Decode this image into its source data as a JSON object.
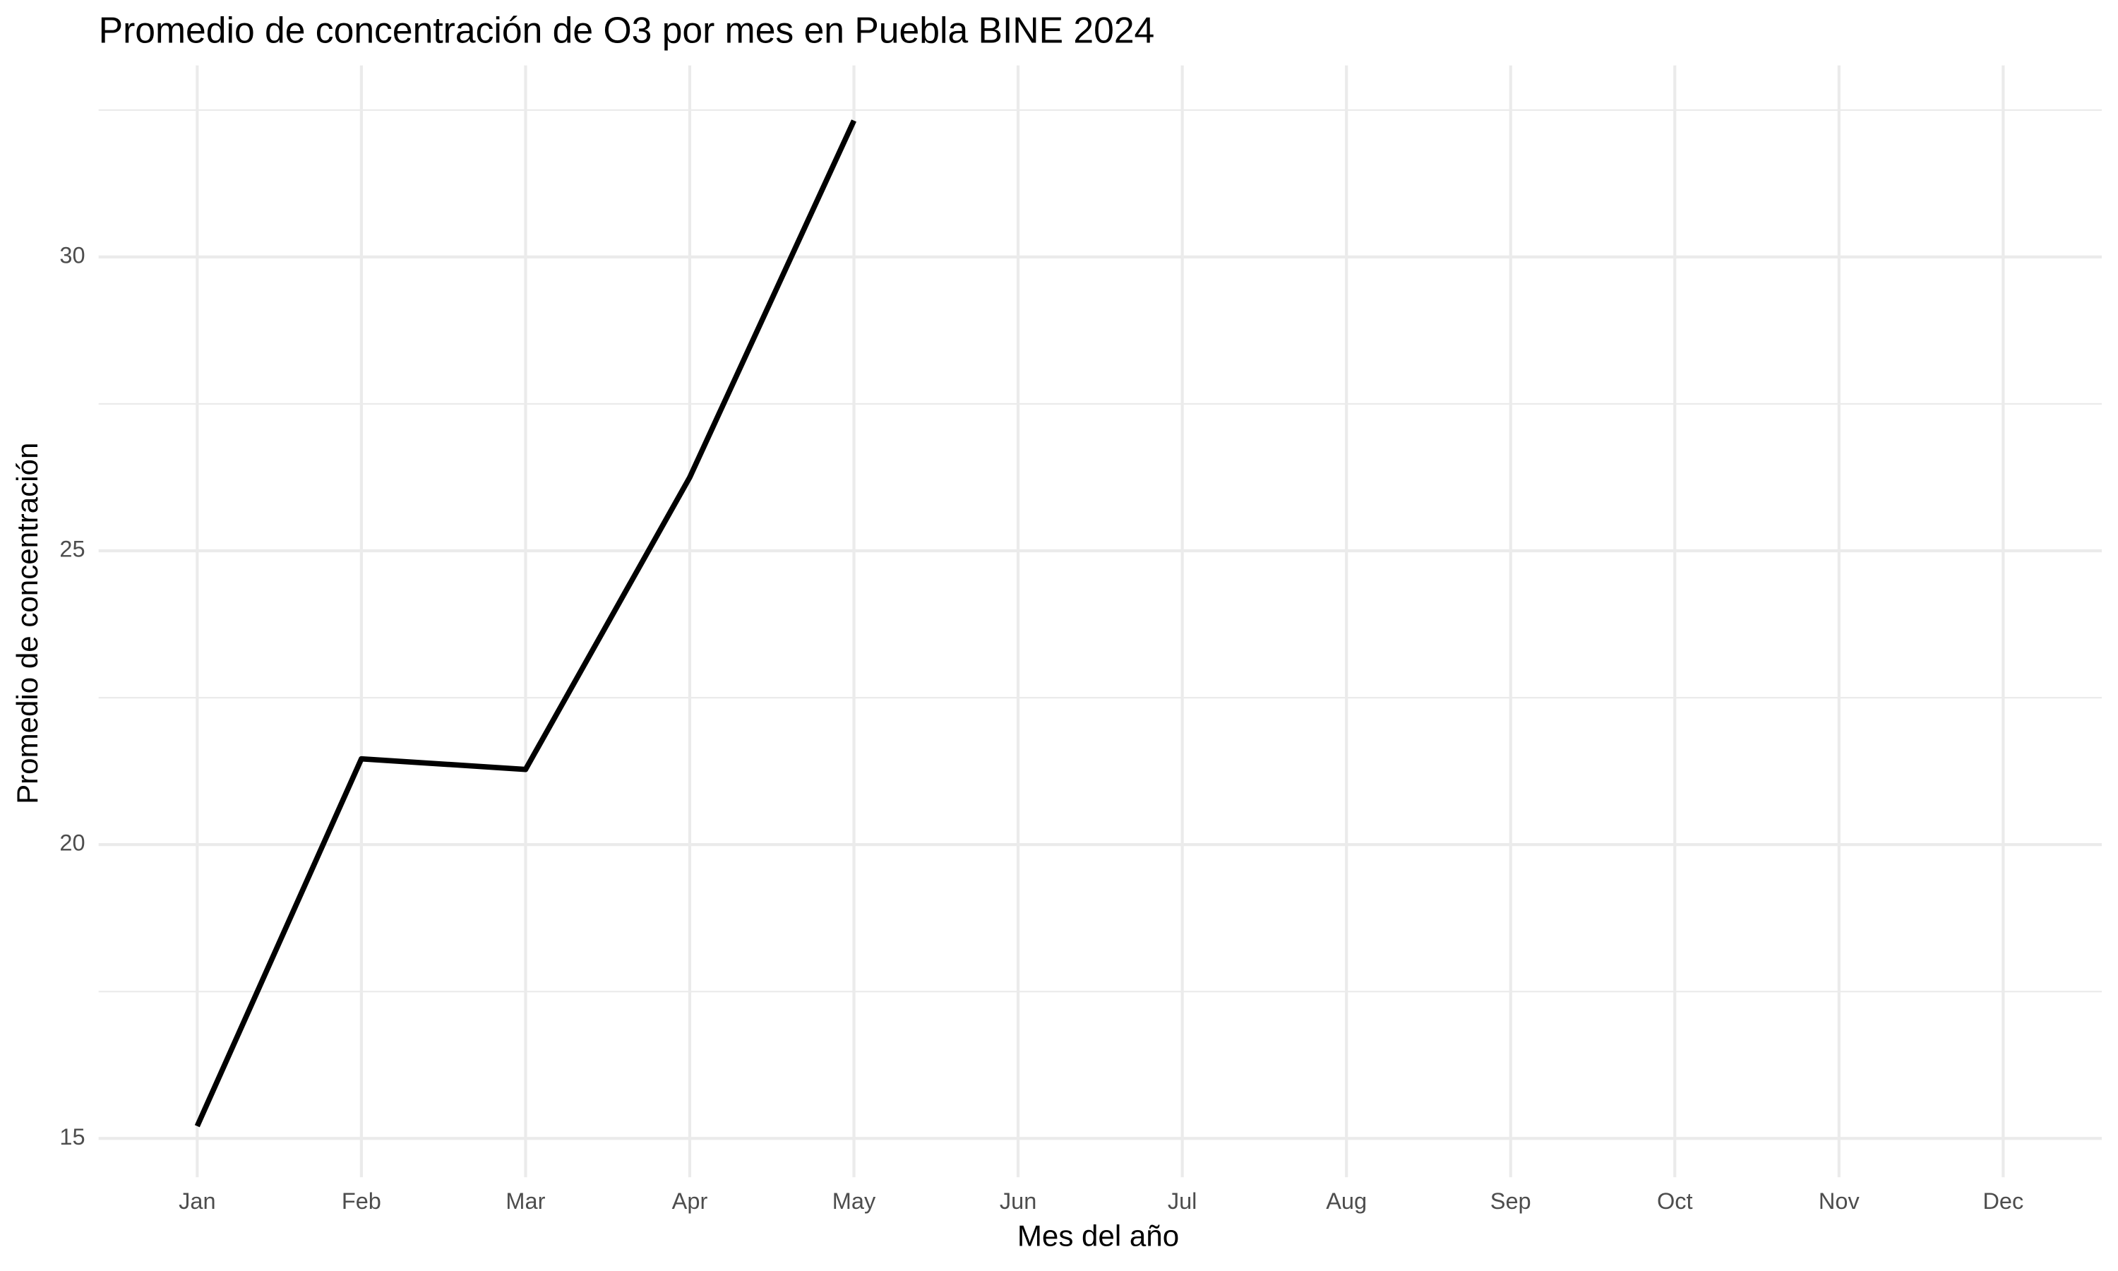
{
  "chart_data": {
    "type": "line",
    "title": "Promedio de concentración de O3 por mes en Puebla BINE 2024",
    "x_label": "Mes del año",
    "y_label": "Promedio de concentración",
    "categories": [
      "Jan",
      "Feb",
      "Mar",
      "Apr",
      "May",
      "Jun",
      "Jul",
      "Aug",
      "Sep",
      "Oct",
      "Nov",
      "Dec"
    ],
    "series": [
      {
        "name": "O3",
        "color": "#000000",
        "values": [
          15.21,
          21.46,
          21.28,
          26.25,
          32.32,
          null,
          null,
          null,
          null,
          null,
          null,
          null
        ]
      }
    ],
    "ylim": [
      14.34,
      33.26
    ],
    "yticks": [
      15,
      20,
      25,
      30
    ],
    "yminor": [
      17.5,
      22.5,
      27.5,
      32.5
    ],
    "grid": true
  }
}
